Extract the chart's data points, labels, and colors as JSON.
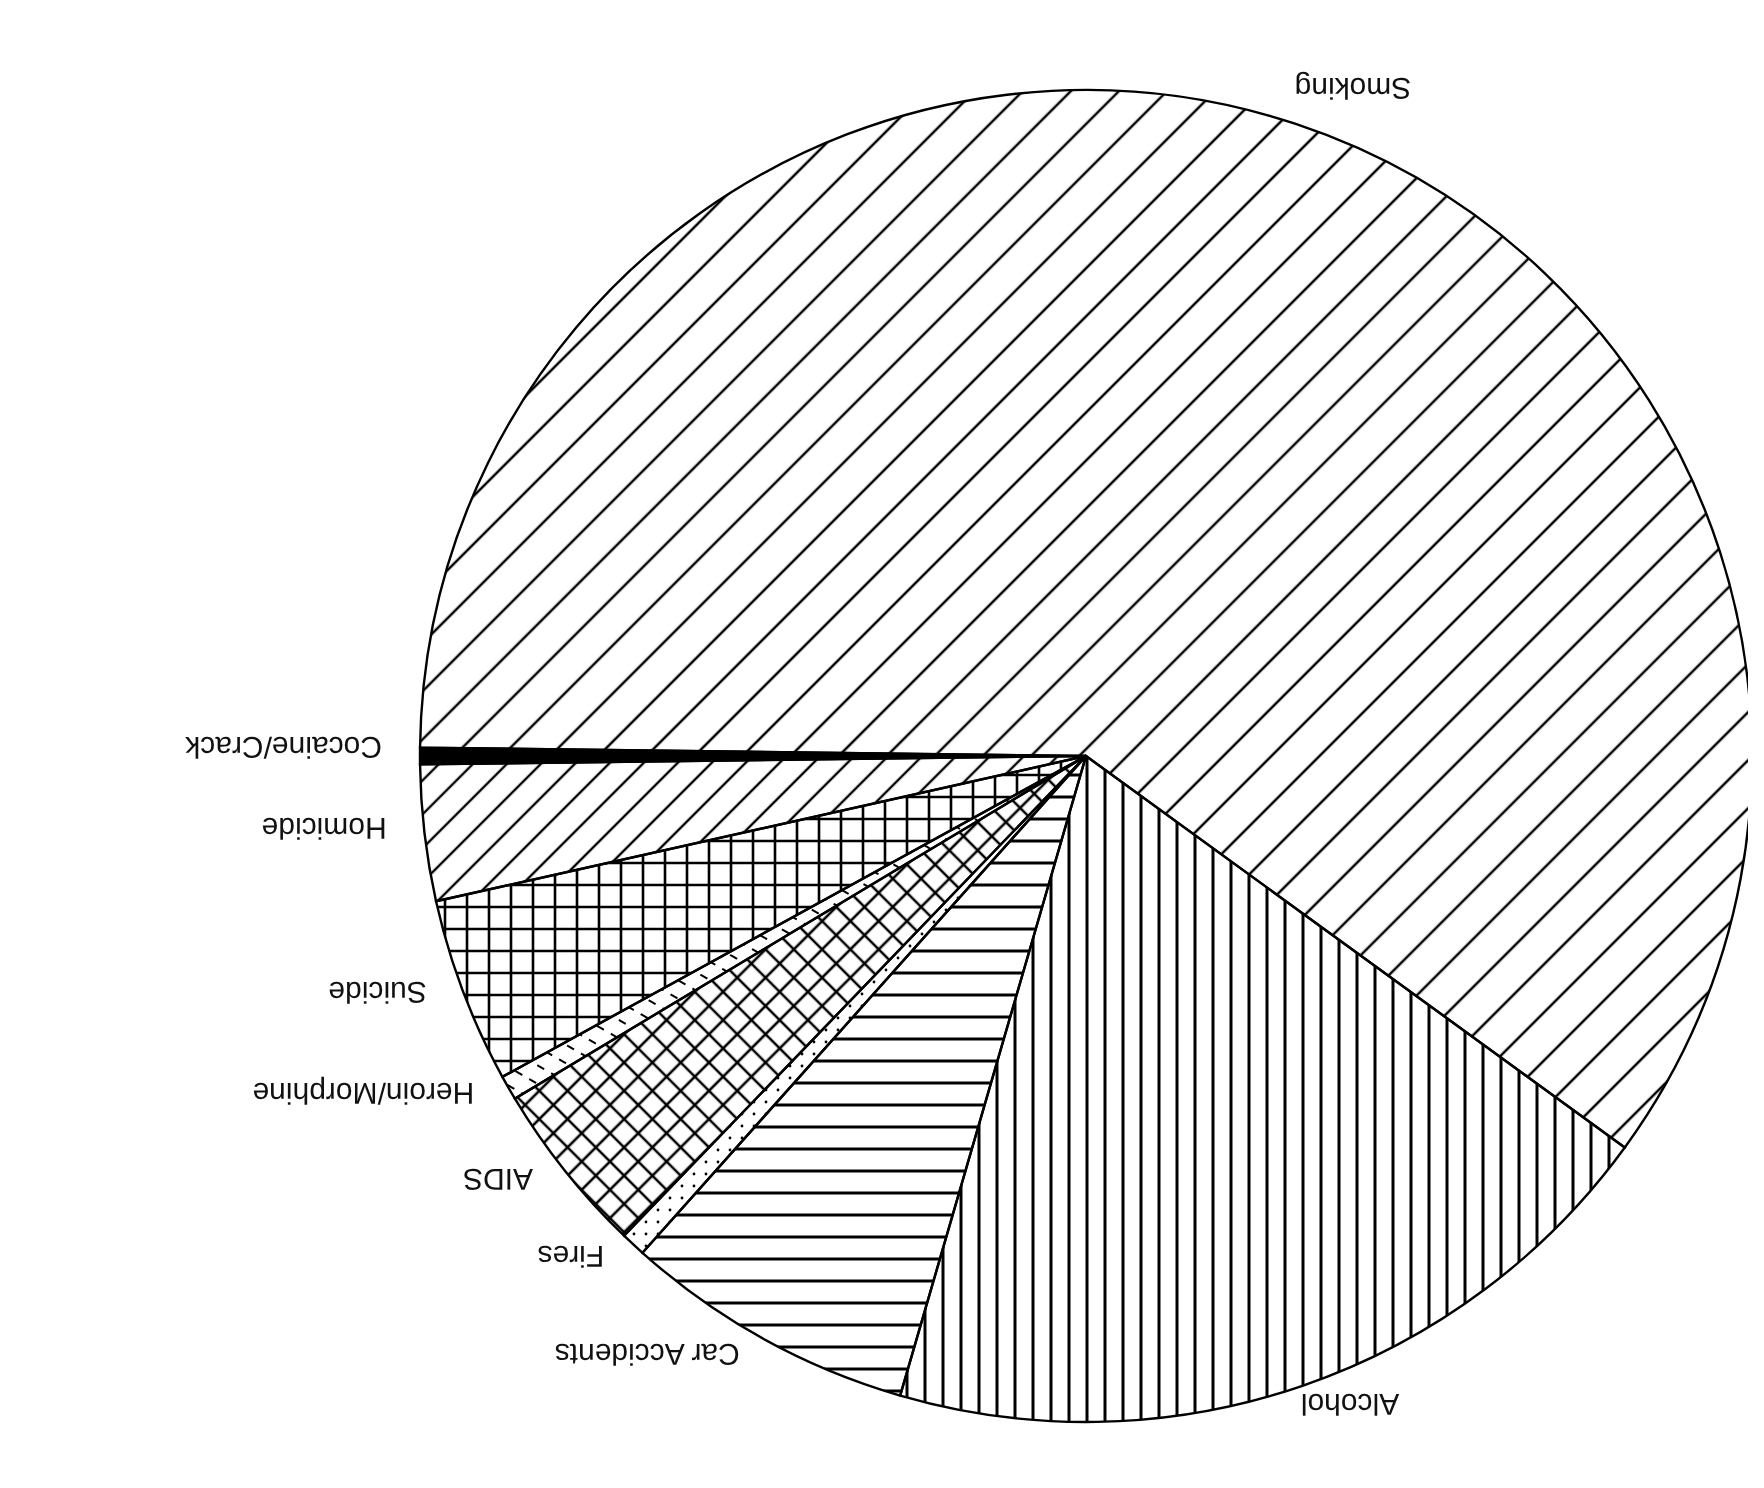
{
  "chart_data": {
    "type": "pie",
    "categories": [
      "Alcohol",
      "Car Accidents",
      "Fires",
      "AIDS",
      "Heroin/Morphine",
      "Suicide",
      "Homicide",
      "Cocaine/Crack",
      "Smoking"
    ],
    "values": [
      19.5,
      7.1,
      0.6,
      4.2,
      0.6,
      4.5,
      3.3,
      0.4,
      59.8
    ],
    "colors": [
      "#000000",
      "#000000",
      "#000000",
      "#000000",
      "#000000",
      "#000000",
      "#000000",
      "#000000",
      "#000000"
    ]
  }
}
